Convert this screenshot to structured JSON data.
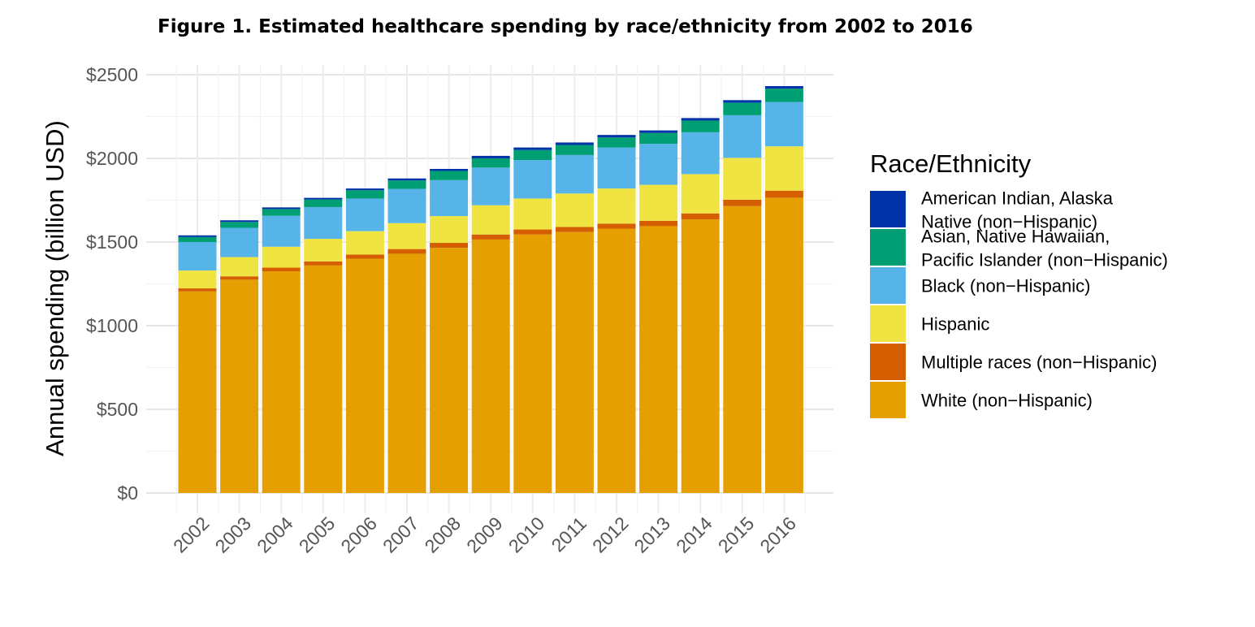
{
  "chart_data": {
    "type": "bar",
    "stacked": true,
    "title": "Figure 1. Estimated healthcare spending by race/ethnicity from 2002 to 2016",
    "xlabel": "",
    "ylabel": "Annual spending (billion USD)",
    "ylim": [
      0,
      2500
    ],
    "y_ticks": [
      "$0",
      "$500",
      "$1000",
      "$1500",
      "$2000",
      "$2500"
    ],
    "y_tick_values": [
      0,
      500,
      1000,
      1500,
      2000,
      2500
    ],
    "grid": true,
    "legend_title": "Race/Ethnicity",
    "legend_position": "right",
    "categories": [
      "2002",
      "2003",
      "2004",
      "2005",
      "2006",
      "2007",
      "2008",
      "2009",
      "2010",
      "2011",
      "2012",
      "2013",
      "2014",
      "2015",
      "2016"
    ],
    "series": [
      {
        "name": "White (non−Hispanic)",
        "color": "#E69F00",
        "values": [
          1205,
          1275,
          1325,
          1360,
          1400,
          1430,
          1465,
          1515,
          1545,
          1560,
          1580,
          1595,
          1635,
          1715,
          1765
        ]
      },
      {
        "name": "Multiple races (non−Hispanic)",
        "color": "#D55E00",
        "values": [
          18,
          20,
          22,
          24,
          25,
          28,
          30,
          30,
          30,
          30,
          30,
          32,
          36,
          38,
          42
        ]
      },
      {
        "name": "Hispanic",
        "color": "#F0E442",
        "values": [
          107,
          115,
          125,
          135,
          140,
          155,
          160,
          175,
          185,
          200,
          210,
          215,
          235,
          250,
          265
        ]
      },
      {
        "name": "Black (non−Hispanic)",
        "color": "#56B4E9",
        "values": [
          170,
          175,
          185,
          190,
          195,
          205,
          215,
          225,
          230,
          230,
          245,
          245,
          250,
          255,
          265
        ]
      },
      {
        "name": "Asian, Native Hawaiian, Pacific Islander (non−Hispanic)",
        "color": "#009E73",
        "values": [
          30,
          35,
          40,
          45,
          50,
          50,
          55,
          55,
          60,
          60,
          60,
          65,
          70,
          75,
          80
        ]
      },
      {
        "name": "American Indian, Alaska Native (non−Hispanic)",
        "color": "#0033AA",
        "values": [
          10,
          10,
          10,
          10,
          10,
          12,
          12,
          15,
          15,
          15,
          15,
          15,
          15,
          15,
          15
        ]
      }
    ],
    "legend_entries": [
      {
        "lines": [
          "American Indian, Alaska",
          "Native (non−Hispanic)"
        ],
        "color": "#0033AA"
      },
      {
        "lines": [
          "Asian, Native Hawaiian,",
          "Pacific Islander (non−Hispanic)"
        ],
        "color": "#009E73"
      },
      {
        "lines": [
          "Black (non−Hispanic)"
        ],
        "color": "#56B4E9"
      },
      {
        "lines": [
          "Hispanic"
        ],
        "color": "#F0E442"
      },
      {
        "lines": [
          "Multiple races (non−Hispanic)"
        ],
        "color": "#D55E00"
      },
      {
        "lines": [
          "White (non−Hispanic)"
        ],
        "color": "#E69F00"
      }
    ]
  }
}
